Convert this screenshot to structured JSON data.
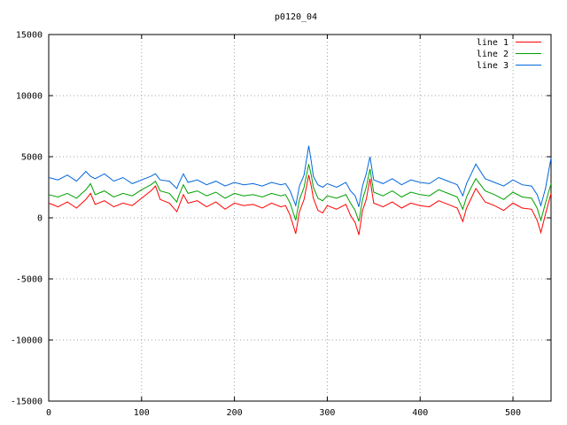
{
  "chart_data": {
    "type": "line",
    "title": "p0120_04",
    "xlabel": "",
    "ylabel": "",
    "xlim": [
      0,
      541
    ],
    "ylim": [
      -15000,
      15000
    ],
    "x_ticks": [
      "0",
      "100",
      "200",
      "300",
      "400",
      "500"
    ],
    "y_ticks": [
      "15000",
      "10000",
      "5000",
      "0",
      "-5000",
      "-10000",
      "-15000"
    ],
    "grid": true,
    "legend_position": "top-right",
    "series": [
      {
        "name": "line 1",
        "color": "#ff0000",
        "x": [
          0,
          10,
          20,
          30,
          40,
          45,
          50,
          60,
          70,
          80,
          90,
          100,
          110,
          115,
          120,
          130,
          138,
          140,
          145,
          150,
          160,
          170,
          180,
          190,
          200,
          210,
          220,
          230,
          240,
          250,
          255,
          260,
          266,
          270,
          275,
          280,
          283,
          285,
          290,
          295,
          300,
          310,
          320,
          325,
          330,
          334,
          338,
          342,
          346,
          350,
          360,
          370,
          380,
          390,
          400,
          410,
          420,
          430,
          440,
          446,
          450,
          455,
          460,
          470,
          480,
          490,
          500,
          510,
          520,
          526,
          530,
          535,
          541
        ],
        "y": [
          1200,
          900,
          1300,
          800,
          1500,
          2000,
          1100,
          1400,
          900,
          1200,
          1000,
          1600,
          2200,
          2600,
          1500,
          1200,
          500,
          900,
          1900,
          1200,
          1400,
          900,
          1300,
          700,
          1200,
          1000,
          1100,
          800,
          1200,
          900,
          1000,
          200,
          -1300,
          500,
          1500,
          3500,
          2500,
          1600,
          600,
          400,
          1000,
          700,
          1100,
          200,
          -400,
          -1400,
          600,
          1500,
          3200,
          1200,
          900,
          1300,
          800,
          1200,
          1000,
          900,
          1400,
          1100,
          800,
          -300,
          800,
          1600,
          2400,
          1300,
          1000,
          600,
          1200,
          800,
          700,
          -200,
          -1200,
          300,
          2000
        ]
      },
      {
        "name": "line 2",
        "color": "#00a000",
        "x": [
          0,
          10,
          20,
          30,
          40,
          45,
          50,
          60,
          70,
          80,
          90,
          100,
          110,
          115,
          120,
          130,
          138,
          140,
          145,
          150,
          160,
          170,
          180,
          190,
          200,
          210,
          220,
          230,
          240,
          250,
          255,
          260,
          266,
          270,
          275,
          280,
          283,
          285,
          290,
          295,
          300,
          310,
          320,
          325,
          330,
          334,
          338,
          342,
          346,
          350,
          360,
          370,
          380,
          390,
          400,
          410,
          420,
          430,
          440,
          446,
          450,
          455,
          460,
          470,
          480,
          490,
          500,
          510,
          520,
          526,
          530,
          535,
          541
        ],
        "y": [
          1900,
          1700,
          2000,
          1600,
          2300,
          2800,
          1900,
          2200,
          1700,
          2000,
          1800,
          2300,
          2700,
          3000,
          2200,
          2000,
          1300,
          1800,
          2700,
          2000,
          2200,
          1800,
          2100,
          1600,
          2000,
          1800,
          1900,
          1700,
          2000,
          1800,
          1900,
          1200,
          -200,
          1500,
          2500,
          4400,
          3400,
          2500,
          1600,
          1400,
          1800,
          1600,
          1900,
          1200,
          600,
          -300,
          1500,
          2500,
          4000,
          2100,
          1800,
          2200,
          1700,
          2100,
          1900,
          1800,
          2300,
          2000,
          1700,
          700,
          1700,
          2500,
          3200,
          2200,
          1900,
          1500,
          2100,
          1700,
          1600,
          800,
          -200,
          1200,
          2800
        ]
      },
      {
        "name": "line 3",
        "color": "#0066dd",
        "x": [
          0,
          10,
          20,
          30,
          40,
          45,
          50,
          60,
          70,
          80,
          90,
          100,
          110,
          115,
          120,
          130,
          138,
          140,
          145,
          150,
          160,
          170,
          180,
          190,
          200,
          210,
          220,
          230,
          240,
          250,
          255,
          260,
          266,
          270,
          275,
          280,
          283,
          285,
          290,
          295,
          300,
          310,
          320,
          325,
          330,
          334,
          338,
          342,
          346,
          350,
          360,
          370,
          380,
          390,
          400,
          410,
          420,
          430,
          440,
          446,
          450,
          455,
          460,
          470,
          480,
          490,
          500,
          510,
          520,
          526,
          530,
          535,
          541
        ],
        "y": [
          3300,
          3100,
          3500,
          3000,
          3800,
          3400,
          3200,
          3600,
          3000,
          3300,
          2800,
          3100,
          3400,
          3600,
          3100,
          3000,
          2400,
          2800,
          3600,
          2900,
          3100,
          2700,
          3000,
          2600,
          2900,
          2700,
          2800,
          2600,
          2900,
          2700,
          2800,
          2200,
          1000,
          2600,
          3500,
          5900,
          4500,
          3400,
          2700,
          2500,
          2800,
          2500,
          2900,
          2200,
          1800,
          900,
          2600,
          3600,
          5000,
          3100,
          2800,
          3200,
          2700,
          3100,
          2900,
          2800,
          3300,
          3000,
          2700,
          1800,
          2800,
          3600,
          4400,
          3200,
          2900,
          2600,
          3100,
          2700,
          2600,
          1900,
          1000,
          2400,
          4900
        ]
      }
    ]
  }
}
